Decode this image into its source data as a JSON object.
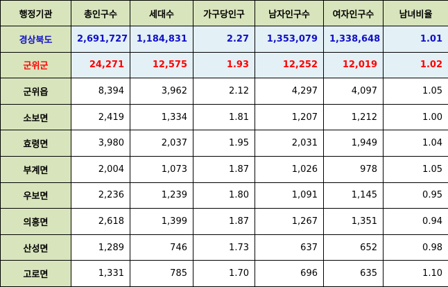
{
  "table": {
    "header": [
      "행정기관",
      "총인구수",
      "세대수",
      "가구당인구",
      "남자인구수",
      "여자인구수",
      "남녀비율"
    ],
    "rows": [
      [
        "경상북도",
        "2,691,727",
        "1,184,831",
        "2.27",
        "1,353,079",
        "1,338,648",
        "1.01"
      ],
      [
        "군위군",
        "24,271",
        "12,575",
        "1.93",
        "12,252",
        "12,019",
        "1.02"
      ],
      [
        "군위읍",
        "8,394",
        "3,962",
        "2.12",
        "4,297",
        "4,097",
        "1.05"
      ],
      [
        "소보면",
        "2,419",
        "1,334",
        "1.81",
        "1,207",
        "1,212",
        "1.00"
      ],
      [
        "효령면",
        "3,980",
        "2,037",
        "1.95",
        "2,031",
        "1,949",
        "1.04"
      ],
      [
        "부계면",
        "2,004",
        "1,073",
        "1.87",
        "1,026",
        "978",
        "1.05"
      ],
      [
        "우보면",
        "2,236",
        "1,239",
        "1.80",
        "1,091",
        "1,145",
        "0.95"
      ],
      [
        "의흥면",
        "2,618",
        "1,399",
        "1.87",
        "1,267",
        "1,351",
        "0.94"
      ],
      [
        "산성면",
        "1,289",
        "746",
        "1.73",
        "637",
        "652",
        "0.98"
      ],
      [
        "고로면",
        "1,331",
        "785",
        "1.70",
        "696",
        "635",
        "1.10"
      ]
    ]
  }
}
